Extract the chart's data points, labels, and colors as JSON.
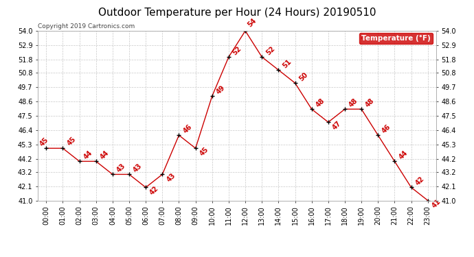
{
  "title": "Outdoor Temperature per Hour (24 Hours) 20190510",
  "copyright": "Copyright 2019 Cartronics.com",
  "legend_label": "Temperature (°F)",
  "hours": [
    "00:00",
    "01:00",
    "02:00",
    "03:00",
    "04:00",
    "05:00",
    "06:00",
    "07:00",
    "08:00",
    "09:00",
    "10:00",
    "11:00",
    "12:00",
    "13:00",
    "14:00",
    "15:00",
    "16:00",
    "17:00",
    "18:00",
    "19:00",
    "20:00",
    "21:00",
    "22:00",
    "23:00"
  ],
  "temperatures": [
    45,
    45,
    44,
    44,
    43,
    43,
    42,
    43,
    46,
    45,
    49,
    52,
    54,
    52,
    51,
    50,
    48,
    47,
    48,
    48,
    46,
    44,
    42,
    41
  ],
  "ylim_min": 41.0,
  "ylim_max": 54.0,
  "yticks": [
    41.0,
    42.1,
    43.2,
    44.2,
    45.3,
    46.4,
    47.5,
    48.6,
    49.7,
    50.8,
    51.8,
    52.9,
    54.0
  ],
  "line_color": "#cc0000",
  "marker_color": "#000000",
  "label_color": "#cc0000",
  "bg_color": "#ffffff",
  "grid_color": "#c8c8c8",
  "title_fontsize": 11,
  "annotation_fontsize": 7,
  "tick_fontsize": 7,
  "copyright_fontsize": 6.5,
  "legend_bg": "#cc0000",
  "legend_text_color": "#ffffff",
  "legend_fontsize": 7.5
}
